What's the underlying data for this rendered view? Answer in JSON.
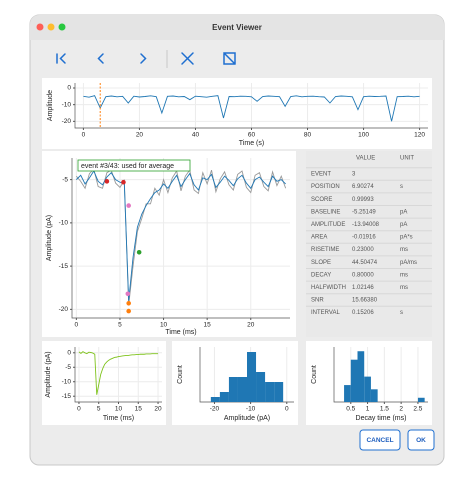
{
  "window": {
    "title": "Event Viewer"
  },
  "chart_data": [
    {
      "type": "line",
      "xlabel": "Time (s)",
      "ylabel": "Amplitude",
      "x": [
        0,
        2,
        4,
        6,
        8,
        10,
        12,
        14,
        16,
        18,
        20,
        22,
        24,
        26,
        28,
        30,
        32,
        34,
        36,
        38,
        40,
        42,
        44,
        46,
        48,
        50,
        52,
        54,
        56,
        58,
        60,
        62,
        64,
        66,
        68,
        70,
        72,
        74,
        76,
        78,
        80,
        82,
        84,
        86,
        88,
        90,
        92,
        94,
        96,
        98,
        100,
        102,
        104,
        106,
        108,
        110,
        112,
        114,
        116,
        118,
        120
      ],
      "series": [
        {
          "color": "#1f77b4",
          "values": [
            -5,
            -5.5,
            -4.6,
            -12,
            -5.2,
            -4.8,
            -5.3,
            -5,
            -9,
            -4.9,
            -5.4,
            -5.1,
            -4.7,
            -5.2,
            -15,
            -5,
            -4.8,
            -5.3,
            -5.1,
            -7,
            -4.9,
            -5.2,
            -5.5,
            -5,
            -4.6,
            -18,
            -5.1,
            -5.2,
            -4.9,
            -5,
            -5.3,
            -8,
            -5.1,
            -4.8,
            -5,
            -5.2,
            -11,
            -5.1,
            -4.7,
            -5.3,
            -5,
            -4.9,
            -5.2,
            -5.4,
            -9,
            -5.1,
            -4.8,
            -5,
            -5.3,
            -13,
            -5.2,
            -4.9,
            -5.1,
            -5,
            -4.8,
            -20,
            -5.2,
            -5.1,
            -4.9,
            -5.3,
            -5
          ]
        }
      ],
      "vline": {
        "x": 6,
        "color": "#ff7f0e"
      },
      "xlim": [
        -3,
        123
      ],
      "ylim": [
        -24,
        3
      ],
      "xticks": [
        0,
        20,
        40,
        60,
        80,
        100,
        120
      ],
      "yticks": [
        0,
        -10,
        -20
      ],
      "grid": true
    },
    {
      "type": "line",
      "xlabel": "Time (ms)",
      "ylabel": "Amplitude (pA)",
      "annotation": "event #3/43: used for average",
      "x": [
        0,
        0.5,
        1,
        1.5,
        2,
        2.5,
        3,
        3.5,
        4,
        4.5,
        5,
        5.5,
        6,
        6.5,
        7,
        7.5,
        8,
        8.5,
        9,
        9.5,
        10,
        10.5,
        11,
        11.5,
        12,
        12.5,
        13,
        13.5,
        14,
        14.5,
        15,
        15.5,
        16,
        16.5,
        17,
        17.5,
        18,
        18.5,
        19,
        19.5,
        20,
        20.5,
        21,
        21.5,
        22,
        22.5,
        23,
        23.5,
        24
      ],
      "series": [
        {
          "color": "#999999",
          "values": [
            -4.6,
            -5.2,
            -6,
            -4.3,
            -3.8,
            -5.8,
            -6,
            -4.2,
            -3.9,
            -5.4,
            -5.9,
            -5.1,
            -19.5,
            -15,
            -11,
            -9.5,
            -7.8,
            -7.8,
            -6,
            -6.8,
            -5,
            -6.5,
            -4.8,
            -4,
            -6.3,
            -4.6,
            -3.9,
            -6.2,
            -6.6,
            -4.2,
            -5.5,
            -3.9,
            -6.4,
            -4.9,
            -4.1,
            -5.6,
            -6.2,
            -4.4,
            -4,
            -5.9,
            -6.5,
            -4.5,
            -4.2,
            -5.8,
            -6.3,
            -4.1,
            -5.7,
            -4.6,
            -6
          ]
        },
        {
          "color": "#1f77b4",
          "values": [
            -5,
            -4.5,
            -5.5,
            -4.8,
            -4,
            -5.2,
            -5.6,
            -4.7,
            -4.2,
            -5,
            -5.3,
            -5.5,
            -19,
            -14,
            -10.5,
            -9,
            -8,
            -7.2,
            -6.5,
            -6.2,
            -5.5,
            -6,
            -5.2,
            -4.5,
            -5.8,
            -5,
            -4.3,
            -5.6,
            -6.2,
            -4.8,
            -5,
            -4.4,
            -5.9,
            -5.3,
            -4.6,
            -5.1,
            -5.7,
            -4.9,
            -4.5,
            -5.4,
            -6,
            -5,
            -4.7,
            -5.3,
            -5.8,
            -4.6,
            -5.2,
            -5,
            -5.5
          ]
        }
      ],
      "points": [
        {
          "x": 3.5,
          "y": -5.2,
          "color": "#d62728"
        },
        {
          "x": 5.4,
          "y": -5.3,
          "color": "#d62728"
        },
        {
          "x": 6,
          "y": -8,
          "color": "#e377c2"
        },
        {
          "x": 7.2,
          "y": -13.4,
          "color": "#2ca02c"
        },
        {
          "x": 5.9,
          "y": -18.2,
          "color": "#e377c2"
        },
        {
          "x": 6,
          "y": -19.3,
          "color": "#ff7f0e"
        },
        {
          "x": 6,
          "y": -20.2,
          "color": "#ff7f0e"
        }
      ],
      "xlim": [
        -0.5,
        24.5
      ],
      "ylim": [
        -21,
        -2.5
      ],
      "xticks": [
        0,
        5,
        10,
        15,
        20
      ],
      "yticks": [
        -5,
        -10,
        -15,
        -20
      ],
      "grid": true
    },
    {
      "type": "line",
      "xlabel": "Time (ms)",
      "ylabel": "Amplitude (pA)",
      "x": [
        0,
        0.5,
        1,
        1.5,
        2,
        2.5,
        3,
        3.5,
        4,
        4.5,
        5,
        5.5,
        6,
        6.5,
        7,
        7.5,
        8,
        8.5,
        9,
        9.5,
        10,
        10.5,
        11,
        11.5,
        12,
        12.5,
        13,
        13.5,
        14,
        14.5,
        15,
        15.5,
        16,
        16.5,
        17,
        17.5,
        18,
        18.5,
        19,
        19.5,
        20
      ],
      "series": [
        {
          "color": "#7fc31c",
          "values": [
            0.3,
            -0.2,
            0.4,
            0,
            -0.3,
            0.2,
            0.1,
            -0.1,
            -0.5,
            -14.5,
            -11,
            -7.5,
            -5.5,
            -4,
            -3.2,
            -2.6,
            -2.2,
            -1.9,
            -1.6,
            -1.5,
            -1.3,
            -1.2,
            -1.1,
            -1,
            -0.9,
            -0.9,
            -0.8,
            -0.7,
            -0.7,
            -0.6,
            -0.6,
            -0.5,
            -0.5,
            -0.5,
            -0.4,
            -0.4,
            -0.4,
            -0.3,
            -0.3,
            -0.3,
            -0.3
          ]
        }
      ],
      "xlim": [
        -1,
        21
      ],
      "ylim": [
        -17,
        2
      ],
      "xticks": [
        0,
        5,
        10,
        15,
        20
      ],
      "yticks": [
        0,
        -5,
        -10,
        -15
      ],
      "grid": true
    },
    {
      "type": "histogram",
      "xlabel": "Amplitude (pA)",
      "ylabel": "Count",
      "color": "#1f77b4",
      "bins": [
        -21,
        -18.5,
        -16,
        -13.5,
        -11,
        -8.5,
        -6,
        -3.5,
        -1
      ],
      "values": [
        1,
        2,
        5,
        5,
        10,
        6,
        4,
        4
      ],
      "xlim": [
        -24,
        2
      ],
      "ylim": [
        0,
        11
      ],
      "xticks": [
        -20,
        -10,
        0
      ],
      "grid": true
    },
    {
      "type": "histogram",
      "xlabel": "Decay time (ms)",
      "ylabel": "Count",
      "color": "#1f77b4",
      "bins": [
        0.3,
        0.5,
        0.7,
        0.9,
        1.1,
        1.3,
        1.5,
        1.7,
        1.9,
        2.1,
        2.3,
        2.5,
        2.7
      ],
      "values": [
        4,
        10,
        12,
        6,
        3,
        0,
        0,
        0,
        0,
        0,
        0,
        1
      ],
      "xlim": [
        0,
        2.8
      ],
      "ylim": [
        0,
        13
      ],
      "xticks": [
        0.5,
        1,
        1.5,
        2,
        2.5
      ],
      "grid": true
    }
  ],
  "table": {
    "columns": [
      "VALUE",
      "UNIT"
    ],
    "rows": [
      [
        "EVENT",
        "3"
      ],
      [
        "POSITION",
        "6.90274",
        "s"
      ],
      [
        "SCORE",
        "0.99993"
      ],
      [
        "BASELINE",
        "-5.25149",
        "pA"
      ],
      [
        "AMPLITUDE",
        "-13.94008",
        "pA"
      ],
      [
        "AREA",
        "-0.01916",
        "pA*s"
      ],
      [
        "RISETIME",
        "0.23000",
        "ms"
      ],
      [
        "SLOPE",
        "44.50474",
        "pA/ms"
      ],
      [
        "DECAY",
        "0.80000",
        "ms"
      ],
      [
        "HALFWIDTH",
        "1.02146",
        "ms"
      ],
      [
        "SNR",
        "15.66380"
      ],
      [
        "INTERVAL",
        "0.15206",
        "s"
      ]
    ]
  },
  "buttons": [
    "CANCEL",
    "OK"
  ]
}
